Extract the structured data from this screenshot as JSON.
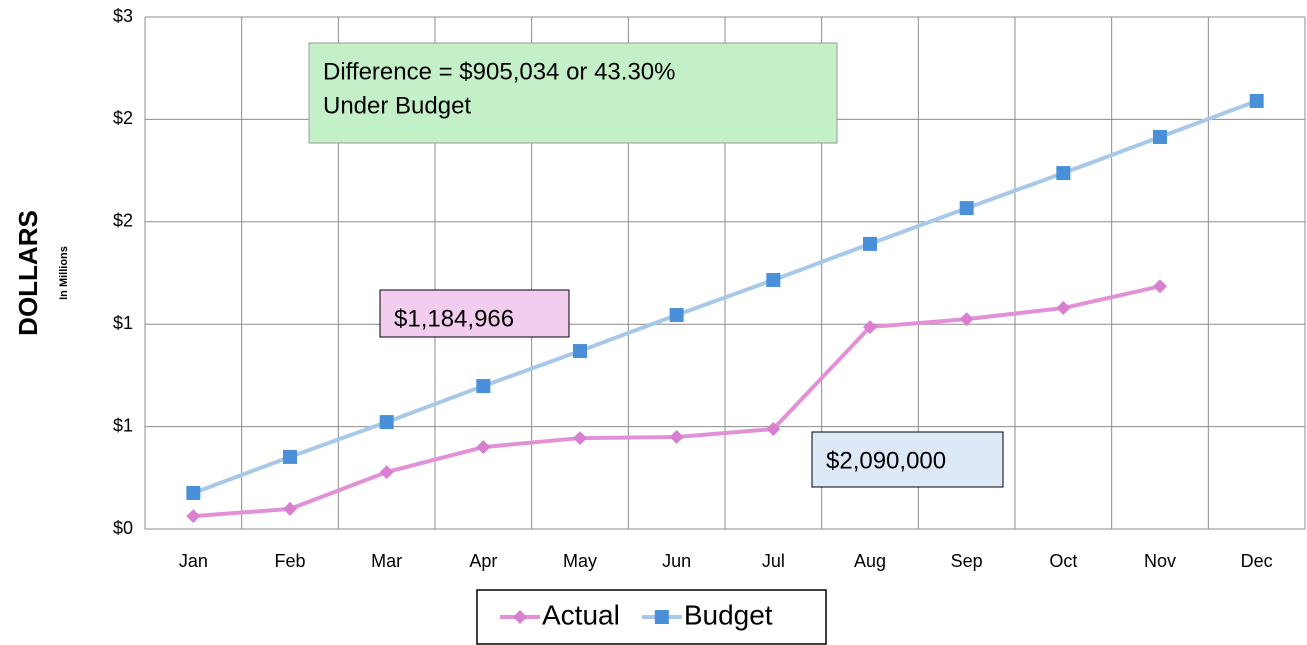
{
  "chart_data": {
    "type": "line",
    "y_axis_label": "DOLLARS",
    "y_axis_sublabel": "In Millions",
    "categories": [
      "Jan",
      "Feb",
      "Mar",
      "Apr",
      "May",
      "Jun",
      "Jul",
      "Aug",
      "Sep",
      "Oct",
      "Nov",
      "Dec"
    ],
    "series": [
      {
        "name": "Actual",
        "color": "#e291d8",
        "marker_color": "#d97fd0",
        "marker": "diamond",
        "values": [
          0.063,
          0.098,
          0.278,
          0.4,
          0.444,
          0.449,
          0.488,
          0.986,
          1.025,
          1.079,
          1.185,
          null
        ]
      },
      {
        "name": "Budget",
        "color": "#a8c8e8",
        "marker_color": "#4a90d9",
        "marker": "square",
        "values": [
          0.176,
          0.352,
          0.522,
          0.698,
          0.869,
          1.045,
          1.216,
          1.392,
          1.567,
          1.738,
          1.914,
          2.09
        ]
      }
    ],
    "ylim": [
      0,
      2.5
    ],
    "yticks": [
      {
        "value": 0,
        "label": "$0"
      },
      {
        "value": 0.5,
        "label": "$1"
      },
      {
        "value": 1,
        "label": "$1"
      },
      {
        "value": 1.5,
        "label": "$2"
      },
      {
        "value": 2,
        "label": "$2"
      },
      {
        "value": 2.5,
        "label": "$3"
      }
    ],
    "grid": true,
    "legend": "bottom",
    "annotations": [
      {
        "lines": [
          "Difference = $905,034 or 43.30%",
          "Under Budget"
        ],
        "fill": "#c4f0c8",
        "border": "#9a9a9a"
      },
      {
        "lines": [
          "$1,184,966"
        ],
        "fill": "#f3cdef",
        "border": "#000000"
      },
      {
        "lines": [
          "$2,090,000"
        ],
        "fill": "#dde9f6",
        "border": "#000000"
      }
    ]
  }
}
